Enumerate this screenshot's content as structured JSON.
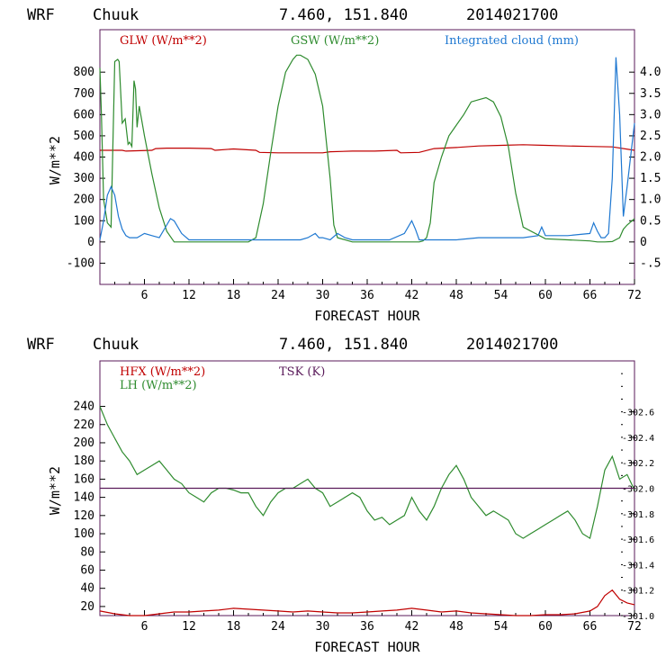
{
  "panels": [
    {
      "header": {
        "model": "WRF",
        "station": "Chuuk",
        "coords": "7.460, 151.840",
        "init": "2014021700"
      },
      "xlabel": "FORECAST HOUR",
      "ylabel": "W/m**2"
    },
    {
      "header": {
        "model": "WRF",
        "station": "Chuuk",
        "coords": "7.460, 151.840",
        "init": "2014021700"
      },
      "xlabel": "FORECAST HOUR",
      "ylabel": "W/m**2"
    }
  ],
  "chart_data": [
    {
      "type": "line",
      "xlim": [
        0,
        72
      ],
      "ylim": [
        -200,
        1000
      ],
      "y2lim": [
        -1.0,
        5.0
      ],
      "xticks": [
        "6",
        "12",
        "18",
        "24",
        "30",
        "36",
        "42",
        "48",
        "54",
        "60",
        "66",
        "72"
      ],
      "yticks": [
        "-100",
        "0",
        "100",
        "200",
        "300",
        "400",
        "500",
        "600",
        "700",
        "800"
      ],
      "y2ticks": [
        "-.5",
        "0",
        "0.5",
        "1.0",
        "1.5",
        "2.0",
        "2.5",
        "3.0",
        "3.5",
        "4.0"
      ],
      "grid": false,
      "legend_placement": "top",
      "series": [
        {
          "name": "GLW (W/m**2)",
          "color": "#c00000",
          "axis": "left",
          "x": [
            0,
            3,
            3.5,
            7,
            7.5,
            9,
            12,
            15,
            15.5,
            18,
            21,
            21.5,
            24,
            27,
            30,
            31,
            34,
            37,
            40,
            40.5,
            43,
            45,
            48,
            51,
            54,
            57,
            60,
            63,
            66,
            69,
            72
          ],
          "y": [
            432,
            432,
            428,
            432,
            440,
            442,
            442,
            440,
            432,
            438,
            432,
            422,
            420,
            420,
            420,
            425,
            428,
            428,
            432,
            420,
            422,
            440,
            445,
            452,
            455,
            458,
            455,
            452,
            450,
            448,
            432
          ]
        },
        {
          "name": "GSW (W/m**2)",
          "color": "#2e8b2e",
          "axis": "left",
          "x": [
            0,
            0.2,
            0.5,
            1,
            1.5,
            2,
            2.4,
            2.6,
            3,
            3.4,
            3.8,
            4,
            4.3,
            4.6,
            4.8,
            5,
            5.3,
            5.6,
            6,
            7,
            8,
            9,
            10,
            12,
            14,
            16,
            18,
            19,
            19.5,
            20,
            21,
            22,
            23,
            24,
            25,
            26,
            26.5,
            27,
            28,
            29,
            30,
            31,
            31.5,
            32,
            34,
            36,
            38,
            40,
            42,
            43,
            43.5,
            44,
            44.5,
            45,
            46,
            47,
            48,
            49,
            50,
            51,
            52,
            53,
            54,
            55,
            56,
            57,
            60,
            63,
            66,
            67,
            67.5,
            68,
            69,
            70,
            70.5,
            71,
            72
          ],
          "y": [
            820,
            600,
            200,
            90,
            70,
            850,
            860,
            850,
            560,
            580,
            460,
            470,
            450,
            760,
            720,
            540,
            640,
            580,
            500,
            320,
            160,
            50,
            0,
            0,
            0,
            0,
            0,
            0,
            0,
            0,
            20,
            180,
            420,
            640,
            800,
            860,
            880,
            880,
            860,
            790,
            640,
            300,
            80,
            20,
            0,
            0,
            0,
            0,
            0,
            0,
            5,
            20,
            90,
            280,
            400,
            500,
            550,
            600,
            660,
            670,
            680,
            660,
            590,
            450,
            230,
            70,
            15,
            10,
            5,
            0,
            0,
            0,
            2,
            20,
            60,
            80,
            110
          ]
        },
        {
          "name": "Integrated cloud (mm)",
          "color": "#1f78d1",
          "axis": "right",
          "x": [
            0,
            0.5,
            1,
            1.5,
            2,
            2.5,
            3,
            3.5,
            4,
            5,
            6,
            7,
            8,
            9,
            9.5,
            10,
            11,
            12,
            15,
            18,
            21,
            24,
            27,
            28,
            29,
            29.5,
            30,
            31,
            32,
            33,
            34,
            36,
            39,
            41,
            42,
            42.5,
            43,
            44,
            45,
            48,
            51,
            54,
            57,
            59,
            59.5,
            60,
            63,
            66,
            66.5,
            67,
            67.5,
            68,
            68.5,
            69,
            69.5,
            70,
            70.5,
            71,
            72
          ],
          "y": [
            0.05,
            0.5,
            1.1,
            1.3,
            1.1,
            0.6,
            0.3,
            0.15,
            0.1,
            0.1,
            0.2,
            0.15,
            0.1,
            0.4,
            0.55,
            0.5,
            0.2,
            0.05,
            0.05,
            0.05,
            0.05,
            0.05,
            0.05,
            0.1,
            0.2,
            0.1,
            0.1,
            0.05,
            0.2,
            0.1,
            0.05,
            0.05,
            0.05,
            0.2,
            0.5,
            0.3,
            0.05,
            0.05,
            0.05,
            0.05,
            0.1,
            0.1,
            0.1,
            0.15,
            0.35,
            0.15,
            0.15,
            0.2,
            0.45,
            0.25,
            0.1,
            0.1,
            0.2,
            1.5,
            4.35,
            3.0,
            0.6,
            1.3,
            2.8
          ]
        }
      ]
    },
    {
      "type": "line",
      "xlim": [
        0,
        72
      ],
      "ylim": [
        10,
        290
      ],
      "y2lim": [
        301.0,
        303.0
      ],
      "xticks": [
        "6",
        "12",
        "18",
        "24",
        "30",
        "36",
        "42",
        "48",
        "54",
        "60",
        "66",
        "72"
      ],
      "yticks": [
        "20",
        "40",
        "60",
        "80",
        "100",
        "120",
        "140",
        "160",
        "180",
        "200",
        "220",
        "240"
      ],
      "y2ticks": [
        "301.0",
        "301.2",
        "301.4",
        "301.6",
        "301.8",
        "302.0",
        "302.2",
        "302.4",
        "302.6"
      ],
      "grid": false,
      "legend_placement": "top-left",
      "series": [
        {
          "name": "HFX (W/m**2)",
          "color": "#c00000",
          "axis": "left",
          "x": [
            0,
            2,
            4,
            6,
            8,
            10,
            12,
            14,
            16,
            18,
            20,
            22,
            24,
            26,
            28,
            30,
            32,
            34,
            36,
            38,
            40,
            42,
            44,
            46,
            48,
            50,
            52,
            54,
            56,
            58,
            60,
            62,
            64,
            66,
            67,
            68,
            69,
            70,
            71,
            72
          ],
          "y": [
            15,
            12,
            10,
            10,
            12,
            14,
            14,
            15,
            16,
            18,
            17,
            16,
            15,
            14,
            15,
            14,
            13,
            13,
            14,
            15,
            16,
            18,
            16,
            14,
            15,
            13,
            12,
            11,
            10,
            10,
            11,
            11,
            12,
            15,
            20,
            32,
            38,
            28,
            24,
            22
          ]
        },
        {
          "name": "LH  (W/m**2)",
          "color": "#2e8b2e",
          "axis": "left",
          "x": [
            0,
            1,
            2,
            3,
            4,
            5,
            6,
            7,
            8,
            9,
            10,
            11,
            12,
            13,
            14,
            15,
            16,
            17,
            18,
            19,
            20,
            21,
            22,
            23,
            24,
            25,
            26,
            27,
            28,
            29,
            30,
            31,
            32,
            33,
            34,
            35,
            36,
            37,
            38,
            39,
            40,
            41,
            42,
            43,
            44,
            45,
            46,
            47,
            48,
            49,
            50,
            51,
            52,
            53,
            54,
            55,
            56,
            57,
            58,
            59,
            60,
            61,
            62,
            63,
            64,
            65,
            66,
            67,
            68,
            69,
            70,
            71,
            72
          ],
          "y": [
            240,
            220,
            205,
            190,
            180,
            165,
            170,
            175,
            180,
            170,
            160,
            155,
            145,
            140,
            135,
            145,
            150,
            150,
            148,
            145,
            145,
            130,
            120,
            135,
            145,
            150,
            150,
            155,
            160,
            150,
            145,
            130,
            135,
            140,
            145,
            140,
            125,
            115,
            118,
            110,
            115,
            120,
            140,
            125,
            115,
            130,
            150,
            165,
            175,
            160,
            140,
            130,
            120,
            125,
            120,
            115,
            100,
            95,
            100,
            105,
            110,
            115,
            120,
            125,
            115,
            100,
            95,
            130,
            170,
            185,
            160,
            165,
            148
          ]
        },
        {
          "name": "TSK (K)",
          "color": "#5a1a5a",
          "axis": "right",
          "x": [
            0,
            72
          ],
          "y": [
            302.0,
            302.0
          ]
        }
      ]
    }
  ]
}
